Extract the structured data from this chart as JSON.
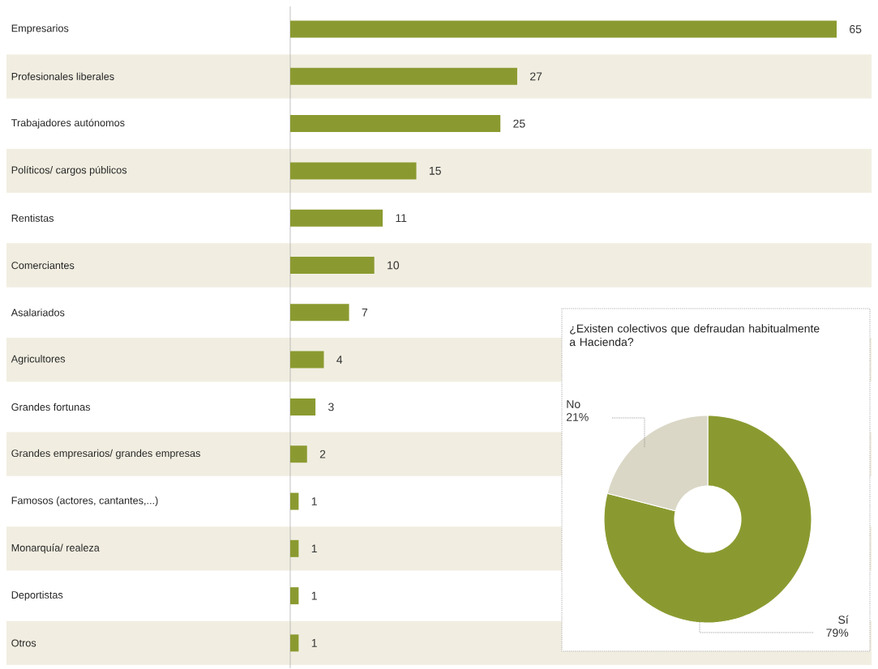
{
  "chart_data": [
    {
      "type": "bar",
      "orientation": "horizontal",
      "categories": [
        "Empresarios",
        "Profesionales liberales",
        "Trabajadores autónomos",
        "Políticos/ cargos públicos",
        "Rentistas",
        "Comerciantes",
        "Asalariados",
        "Agricultores",
        "Grandes fortunas",
        "Grandes empresarios/ grandes empresas",
        "Famosos (actores, cantantes,...)",
        "Monarquía/ realeza",
        "Deportistas",
        "Otros"
      ],
      "values": [
        65,
        27,
        25,
        15,
        11,
        10,
        7,
        4,
        3,
        2,
        1,
        1,
        1,
        1
      ],
      "color": "#8b9a30",
      "data_labels": true
    },
    {
      "type": "donut",
      "title": "¿Existen colectivos que defraudan habitualmente a Hacienda?",
      "categories": [
        "Sí",
        "No"
      ],
      "values": [
        79,
        21
      ],
      "colors": [
        "#8b9a30",
        "#dad7c6"
      ],
      "value_labels": [
        "79%",
        "21%"
      ]
    }
  ]
}
